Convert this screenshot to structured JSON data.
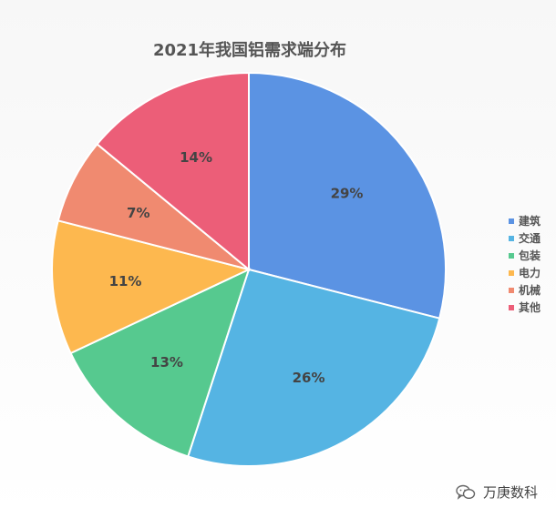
{
  "chart_data": {
    "type": "pie",
    "title": "2021年我国铝需求端分布",
    "categories": [
      "建筑",
      "交通",
      "包装",
      "电力",
      "机械",
      "其他"
    ],
    "values": [
      29,
      26,
      13,
      11,
      7,
      14
    ],
    "labels": [
      "29%",
      "26%",
      "13%",
      "11%",
      "7%",
      "14%"
    ],
    "colors": [
      "#5B93E3",
      "#55B4E3",
      "#56C98F",
      "#FDB84F",
      "#F08A70",
      "#EC5E78"
    ],
    "legend_position": "right"
  },
  "watermark": {
    "icon": "wechat-icon",
    "text": "万庚数科"
  }
}
